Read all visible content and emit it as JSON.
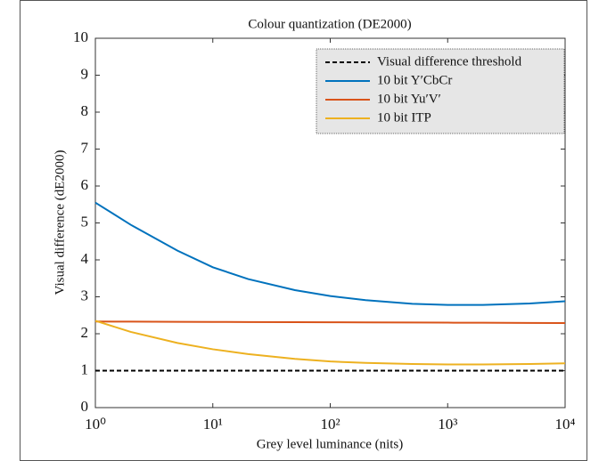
{
  "chart_data": {
    "type": "line",
    "title": "Colour quantization (DE2000)",
    "xlabel": "Grey level luminance (nits)",
    "ylabel": "Visual difference (dE2000)",
    "x": [
      1,
      2,
      5,
      10,
      20,
      50,
      100,
      200,
      500,
      1000,
      2000,
      5000,
      10000
    ],
    "series": [
      {
        "name": "Visual difference threshold",
        "color": "#000000",
        "dashed": true,
        "values": [
          1,
          1,
          1,
          1,
          1,
          1,
          1,
          1,
          1,
          1,
          1,
          1,
          1
        ]
      },
      {
        "name": "10 bit Y′CbCr",
        "color": "#0072bd",
        "values": [
          5.55,
          4.95,
          4.25,
          3.8,
          3.48,
          3.18,
          3.02,
          2.91,
          2.81,
          2.78,
          2.78,
          2.82,
          2.88
        ]
      },
      {
        "name": "10 bit Yu′V′",
        "color": "#d95319",
        "values": [
          2.33,
          2.327,
          2.323,
          2.32,
          2.317,
          2.313,
          2.31,
          2.307,
          2.303,
          2.3,
          2.297,
          2.293,
          2.29
        ]
      },
      {
        "name": "10 bit ITP",
        "color": "#edb120",
        "values": [
          2.35,
          2.05,
          1.75,
          1.58,
          1.45,
          1.32,
          1.25,
          1.21,
          1.18,
          1.17,
          1.17,
          1.18,
          1.2
        ]
      }
    ],
    "xscale": "log",
    "xlim": [
      1,
      10000
    ],
    "xticks": [
      {
        "value": 1,
        "label": "10⁰"
      },
      {
        "value": 10,
        "label": "10¹"
      },
      {
        "value": 100,
        "label": "10²"
      },
      {
        "value": 1000,
        "label": "10³"
      },
      {
        "value": 10000,
        "label": "10⁴"
      }
    ],
    "ylim": [
      0,
      10
    ],
    "yticks": [
      0,
      1,
      2,
      3,
      4,
      5,
      6,
      7,
      8,
      9,
      10
    ],
    "legend": "upper right"
  }
}
